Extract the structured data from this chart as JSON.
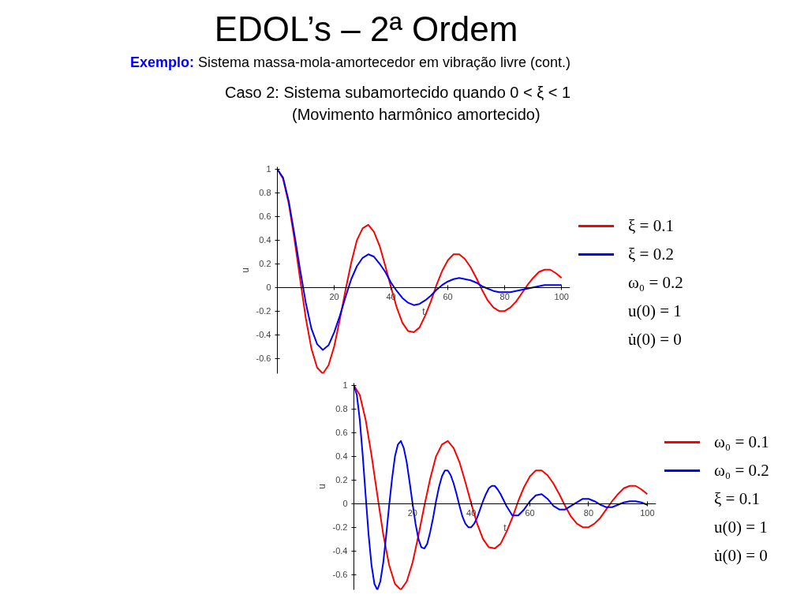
{
  "chart_data": [
    {
      "type": "line",
      "title": "EDOL’s – 2ª Ordem",
      "subtitle": "Exemplo: Sistema massa-mola-amortecedor em vibração livre (cont.)",
      "annotations": [
        "Caso 2: Sistema subamortecido quando 0 < ξ < 1",
        "(Movimento harmônico amortecido)",
        "ω₀ = 0.2",
        "u(0) = 1",
        "u̇(0) = 0"
      ],
      "xlabel": "t",
      "ylabel": "u",
      "xlim": [
        0,
        103
      ],
      "ylim": [
        -0.73,
        1.02
      ],
      "xticks": [
        20,
        40,
        60,
        80,
        100
      ],
      "yticks": [
        -0.6,
        -0.4,
        -0.2,
        0,
        0.2,
        0.4,
        0.6,
        0.8,
        1
      ],
      "grid": false,
      "legend": "right",
      "marker": "none",
      "line_style": "solid",
      "x": [
        0,
        2,
        4,
        6,
        8,
        10,
        12,
        14,
        16,
        18,
        20,
        22,
        24,
        26,
        28,
        30,
        32,
        34,
        36,
        38,
        40,
        42,
        44,
        46,
        48,
        50,
        52,
        54,
        56,
        58,
        60,
        62,
        64,
        66,
        68,
        70,
        72,
        74,
        76,
        78,
        80,
        82,
        84,
        86,
        88,
        90,
        92,
        94,
        96,
        98,
        100
      ],
      "series": [
        {
          "name": "ξ = 0.1",
          "color": "#ff0000",
          "values": [
            1.0,
            0.92,
            0.71,
            0.41,
            0.07,
            -0.26,
            -0.52,
            -0.68,
            -0.73,
            -0.66,
            -0.5,
            -0.27,
            -0.02,
            0.21,
            0.4,
            0.5,
            0.53,
            0.47,
            0.35,
            0.18,
            0.0,
            -0.17,
            -0.3,
            -0.37,
            -0.38,
            -0.34,
            -0.24,
            -0.12,
            0.02,
            0.14,
            0.23,
            0.28,
            0.28,
            0.24,
            0.17,
            0.08,
            -0.02,
            -0.11,
            -0.17,
            -0.2,
            -0.2,
            -0.17,
            -0.12,
            -0.05,
            0.02,
            0.08,
            0.13,
            0.15,
            0.15,
            0.12,
            0.08
          ]
        },
        {
          "name": "ξ = 0.2",
          "color": "#0000ff",
          "values": [
            1.0,
            0.93,
            0.73,
            0.45,
            0.15,
            -0.13,
            -0.35,
            -0.48,
            -0.53,
            -0.49,
            -0.38,
            -0.24,
            -0.08,
            0.07,
            0.18,
            0.25,
            0.28,
            0.26,
            0.2,
            0.13,
            0.04,
            -0.03,
            -0.09,
            -0.13,
            -0.15,
            -0.14,
            -0.11,
            -0.07,
            -0.02,
            0.02,
            0.05,
            0.07,
            0.08,
            0.07,
            0.06,
            0.04,
            0.01,
            -0.01,
            -0.03,
            -0.04,
            -0.04,
            -0.04,
            -0.03,
            -0.02,
            -0.01,
            0.0,
            0.01,
            0.02,
            0.02,
            0.02,
            0.02
          ]
        }
      ]
    },
    {
      "type": "line",
      "annotations": [
        "ξ = 0.1",
        "u(0) = 1",
        "u̇(0) = 0"
      ],
      "xlabel": "t",
      "ylabel": "u",
      "xlim": [
        0,
        103
      ],
      "ylim": [
        -0.73,
        1.02
      ],
      "xticks": [
        20,
        40,
        60,
        80,
        100
      ],
      "yticks": [
        -0.6,
        -0.4,
        -0.2,
        0,
        0.2,
        0.4,
        0.6,
        0.8,
        1
      ],
      "grid": false,
      "legend": "right",
      "marker": "none",
      "line_style": "solid",
      "series": [
        {
          "name": "ω₀ = 0.1",
          "color": "#ff0000",
          "x": [
            0,
            2,
            4,
            6,
            8,
            10,
            12,
            14,
            16,
            18,
            20,
            22,
            24,
            26,
            28,
            30,
            32,
            34,
            36,
            38,
            40,
            42,
            44,
            46,
            48,
            50,
            52,
            54,
            56,
            58,
            60,
            62,
            64,
            66,
            68,
            70,
            72,
            74,
            76,
            78,
            80,
            82,
            84,
            86,
            88,
            90,
            92,
            94,
            96,
            98,
            100
          ],
          "values": [
            1.0,
            0.92,
            0.71,
            0.41,
            0.07,
            -0.26,
            -0.52,
            -0.68,
            -0.73,
            -0.66,
            -0.5,
            -0.27,
            -0.02,
            0.21,
            0.4,
            0.5,
            0.53,
            0.47,
            0.35,
            0.18,
            0.0,
            -0.17,
            -0.3,
            -0.37,
            -0.38,
            -0.34,
            -0.24,
            -0.12,
            0.02,
            0.14,
            0.23,
            0.28,
            0.28,
            0.24,
            0.17,
            0.08,
            -0.02,
            -0.11,
            -0.17,
            -0.2,
            -0.2,
            -0.17,
            -0.12,
            -0.05,
            0.02,
            0.08,
            0.13,
            0.15,
            0.15,
            0.12,
            0.08
          ]
        },
        {
          "name": "ω₀ = 0.2",
          "color": "#0000ff",
          "x": [
            0,
            1,
            2,
            3,
            4,
            5,
            6,
            7,
            8,
            9,
            10,
            11,
            12,
            13,
            14,
            15,
            16,
            17,
            18,
            19,
            20,
            21,
            22,
            23,
            24,
            25,
            26,
            27,
            28,
            29,
            30,
            31,
            32,
            33,
            34,
            35,
            36,
            37,
            38,
            39,
            40,
            41,
            42,
            43,
            44,
            45,
            46,
            47,
            48,
            49,
            50,
            52,
            54,
            56,
            58,
            60,
            62,
            64,
            66,
            68,
            70,
            72,
            74,
            76,
            78,
            80,
            82,
            84,
            86,
            88,
            90,
            92,
            94,
            96,
            98,
            100
          ],
          "values": [
            1.0,
            0.92,
            0.71,
            0.41,
            0.07,
            -0.26,
            -0.52,
            -0.68,
            -0.73,
            -0.66,
            -0.5,
            -0.27,
            -0.02,
            0.21,
            0.4,
            0.5,
            0.53,
            0.47,
            0.35,
            0.18,
            0.0,
            -0.17,
            -0.3,
            -0.37,
            -0.38,
            -0.34,
            -0.24,
            -0.12,
            0.02,
            0.14,
            0.23,
            0.28,
            0.28,
            0.24,
            0.17,
            0.08,
            -0.02,
            -0.11,
            -0.17,
            -0.2,
            -0.2,
            -0.17,
            -0.12,
            -0.05,
            0.02,
            0.08,
            0.13,
            0.15,
            0.15,
            0.12,
            0.08,
            -0.02,
            -0.1,
            -0.1,
            -0.05,
            0.02,
            0.07,
            0.08,
            0.04,
            -0.02,
            -0.05,
            -0.05,
            -0.02,
            0.01,
            0.04,
            0.04,
            0.02,
            -0.01,
            -0.03,
            -0.03,
            -0.01,
            0.01,
            0.02,
            0.02,
            0.01,
            -0.01
          ]
        }
      ]
    }
  ]
}
